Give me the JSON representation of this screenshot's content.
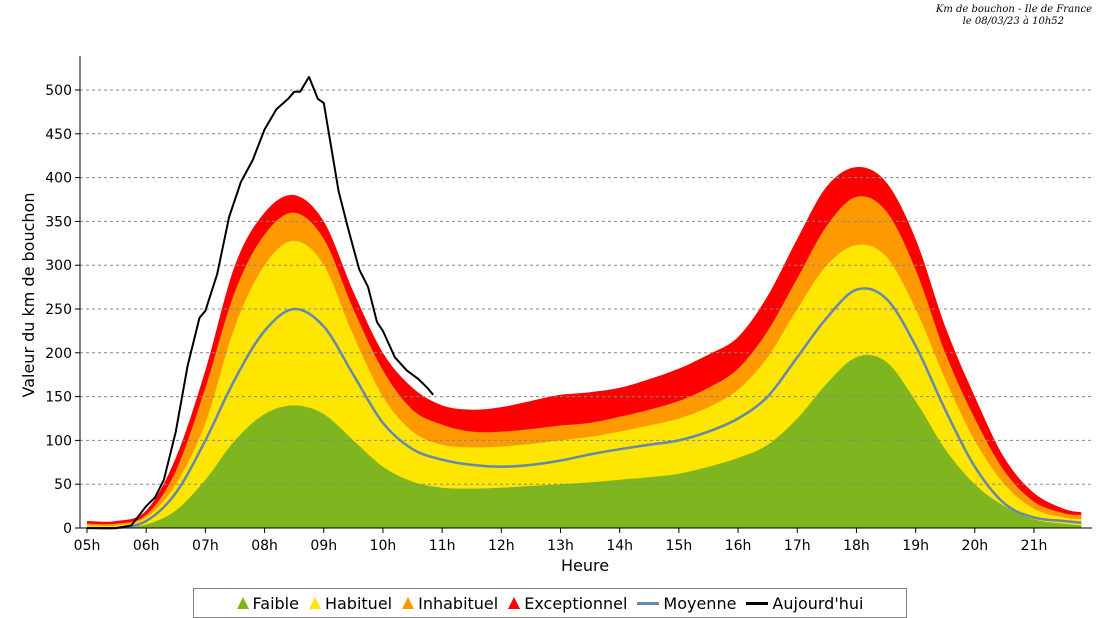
{
  "caption": {
    "line1": "Km de bouchon - Ile de France",
    "line2": "le 08/03/23 à 10h52"
  },
  "chart_data": {
    "type": "area",
    "title": "",
    "xlabel": "Heure",
    "ylabel": "Valeur du  km de bouchon",
    "xlim": [
      5,
      21.9
    ],
    "ylim": [
      0,
      540
    ],
    "yticks": [
      0,
      50,
      100,
      150,
      200,
      250,
      300,
      350,
      400,
      450,
      500
    ],
    "ytick_labels": [
      "0",
      "50",
      "100",
      "150",
      "200",
      "250",
      "300",
      "350",
      "400",
      "450",
      "500"
    ],
    "xticks": [
      5,
      6,
      7,
      8,
      9,
      10,
      11,
      12,
      13,
      14,
      15,
      16,
      17,
      18,
      19,
      20,
      21
    ],
    "xtick_labels": [
      "05h",
      "06h",
      "07h",
      "08h",
      "09h",
      "10h",
      "11h",
      "12h",
      "13h",
      "14h",
      "15h",
      "16h",
      "17h",
      "18h",
      "19h",
      "20h",
      "21h"
    ],
    "grid": true,
    "legend_position": "bottom",
    "x": [
      5,
      5.5,
      6,
      6.5,
      7,
      7.5,
      8,
      8.5,
      9,
      9.5,
      10,
      10.5,
      11,
      11.5,
      12,
      12.5,
      13,
      13.5,
      14,
      14.5,
      15,
      15.5,
      16,
      16.5,
      17,
      17.5,
      18,
      18.5,
      19,
      19.5,
      20,
      20.5,
      21,
      21.5,
      21.8
    ],
    "series": [
      {
        "name": "Faible",
        "color": "#7fb61f",
        "kind": "area",
        "values": [
          0,
          0,
          4,
          20,
          55,
          100,
          130,
          140,
          130,
          100,
          70,
          53,
          46,
          45,
          46,
          48,
          50,
          52,
          55,
          58,
          62,
          70,
          80,
          95,
          125,
          165,
          195,
          190,
          145,
          90,
          50,
          25,
          10,
          5,
          3
        ]
      },
      {
        "name": "Habituel",
        "color": "#ffe600",
        "kind": "area",
        "values": [
          3,
          3,
          12,
          50,
          120,
          230,
          300,
          328,
          300,
          220,
          150,
          110,
          95,
          92,
          93,
          96,
          100,
          104,
          110,
          117,
          125,
          138,
          158,
          195,
          250,
          300,
          323,
          310,
          250,
          170,
          100,
          50,
          22,
          12,
          10
        ]
      },
      {
        "name": "Inhabituel",
        "color": "#ff9900",
        "kind": "area",
        "values": [
          5,
          5,
          15,
          65,
          160,
          270,
          335,
          360,
          330,
          250,
          180,
          135,
          118,
          110,
          110,
          113,
          117,
          120,
          127,
          135,
          145,
          160,
          182,
          225,
          285,
          345,
          378,
          362,
          295,
          200,
          125,
          65,
          30,
          17,
          15
        ]
      },
      {
        "name": "Exceptionnel",
        "color": "#ff0000",
        "kind": "area",
        "values": [
          8,
          8,
          20,
          80,
          180,
          300,
          360,
          380,
          350,
          270,
          200,
          160,
          140,
          135,
          138,
          145,
          152,
          155,
          160,
          170,
          182,
          198,
          218,
          265,
          330,
          390,
          412,
          395,
          330,
          230,
          150,
          80,
          40,
          22,
          18
        ]
      },
      {
        "name": "Moyenne",
        "color": "#6688aa",
        "kind": "line",
        "values": [
          0,
          0,
          8,
          40,
          100,
          170,
          225,
          250,
          230,
          175,
          120,
          90,
          78,
          72,
          70,
          72,
          77,
          84,
          90,
          95,
          100,
          110,
          125,
          150,
          195,
          240,
          272,
          262,
          208,
          135,
          70,
          28,
          12,
          8,
          6
        ]
      }
    ],
    "today": {
      "name": "Aujourd'hui",
      "color": "#000000",
      "x": [
        5,
        5.5,
        5.75,
        6,
        6.15,
        6.3,
        6.5,
        6.7,
        6.9,
        7,
        7.2,
        7.4,
        7.6,
        7.8,
        8,
        8.2,
        8.4,
        8.5,
        8.6,
        8.75,
        8.9,
        9,
        9.1,
        9.25,
        9.4,
        9.5,
        9.6,
        9.75,
        9.9,
        10,
        10.2,
        10.4,
        10.6,
        10.75,
        10.85
      ],
      "values": [
        0,
        0,
        3,
        25,
        35,
        55,
        110,
        185,
        240,
        248,
        290,
        355,
        395,
        420,
        455,
        478,
        490,
        498,
        498,
        515,
        490,
        485,
        445,
        385,
        345,
        320,
        295,
        275,
        235,
        225,
        195,
        180,
        170,
        160,
        152
      ]
    }
  }
}
